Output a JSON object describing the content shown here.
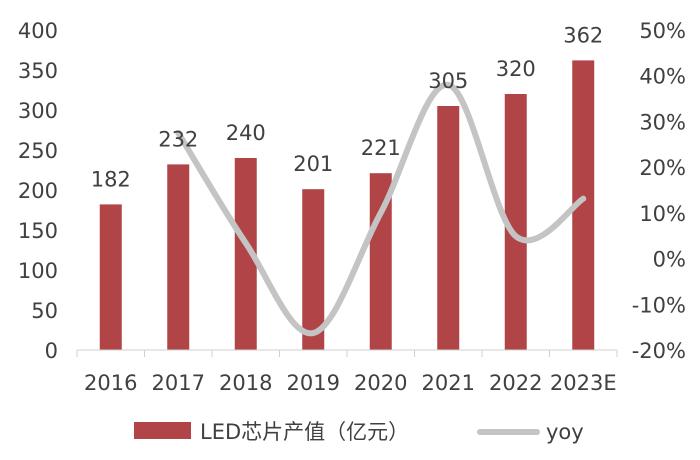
{
  "chart_data": {
    "type": "bar+line",
    "title": "",
    "categories": [
      "2016",
      "2017",
      "2018",
      "2019",
      "2020",
      "2021",
      "2022",
      "2023E"
    ],
    "series": [
      {
        "name": "LED芯片产值（亿元）",
        "type": "bar",
        "axis": "left",
        "values": [
          182,
          232,
          240,
          201,
          221,
          305,
          320,
          362
        ],
        "color": "#b04446"
      },
      {
        "name": "yoy",
        "type": "line",
        "axis": "right",
        "smooth": true,
        "values": [
          null,
          27.5,
          3.4,
          -16.3,
          10.0,
          38.0,
          4.9,
          13.1
        ],
        "color": "#c4c4c4"
      }
    ],
    "left_axis": {
      "ylim": [
        0,
        400
      ],
      "ticks": [
        "0",
        "50",
        "100",
        "150",
        "200",
        "250",
        "300",
        "350",
        "400"
      ]
    },
    "right_axis": {
      "ylim": [
        -20,
        50
      ],
      "unit": "%",
      "ticks": [
        "-20%",
        "-10%",
        "0%",
        "10%",
        "20%",
        "30%",
        "40%",
        "50%"
      ]
    },
    "grid": false,
    "legend": "bottom"
  }
}
